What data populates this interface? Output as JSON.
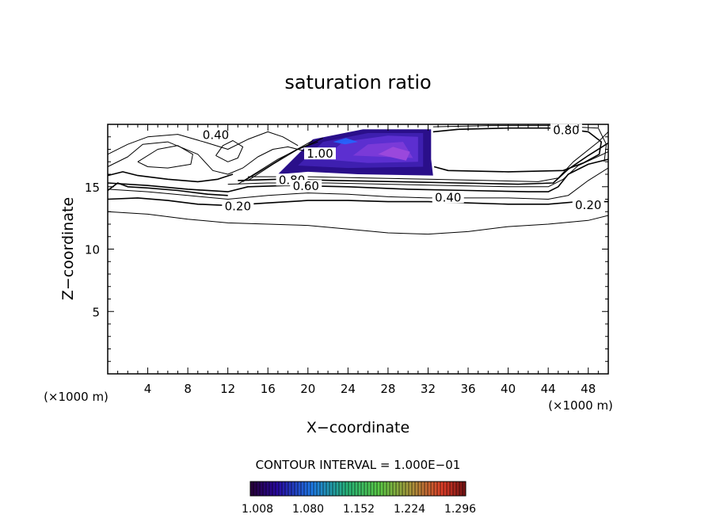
{
  "chart_data": {
    "type": "contour",
    "title": "saturation ratio",
    "xlabel": "X−coordinate",
    "ylabel": "Z−coordinate",
    "x_unit": "(×1000 m)",
    "y_unit": "(×1000 m)",
    "xlim": [
      0,
      50
    ],
    "ylim": [
      0,
      20
    ],
    "x_ticks": [
      4,
      8,
      12,
      16,
      20,
      24,
      28,
      32,
      36,
      40,
      44,
      48
    ],
    "y_ticks": [
      5,
      10,
      15
    ],
    "contour_interval_text": "CONTOUR INTERVAL = 1.000E−01",
    "contour_labels": [
      {
        "text": "0.40",
        "x": 10.8,
        "z": 19.2
      },
      {
        "text": "0.80",
        "x": 45.8,
        "z": 19.6
      },
      {
        "text": "1.00",
        "x": 21.2,
        "z": 17.7
      },
      {
        "text": "0.80",
        "x": 18.4,
        "z": 15.6
      },
      {
        "text": "0.60",
        "x": 19.8,
        "z": 15.1
      },
      {
        "text": "0.40",
        "x": 34.0,
        "z": 14.2
      },
      {
        "text": "0.20",
        "x": 13.0,
        "z": 13.5
      },
      {
        "text": "0.20",
        "x": 48.0,
        "z": 13.6
      }
    ],
    "colorbar": {
      "tick_labels": [
        "1.008",
        "1.080",
        "1.152",
        "1.224",
        "1.296"
      ]
    },
    "shaded_region_colors": [
      "#2a0f8a",
      "#3e1fb0",
      "#5c2fd0",
      "#7a3ad8",
      "#9a48dc",
      "#2266ff"
    ]
  }
}
